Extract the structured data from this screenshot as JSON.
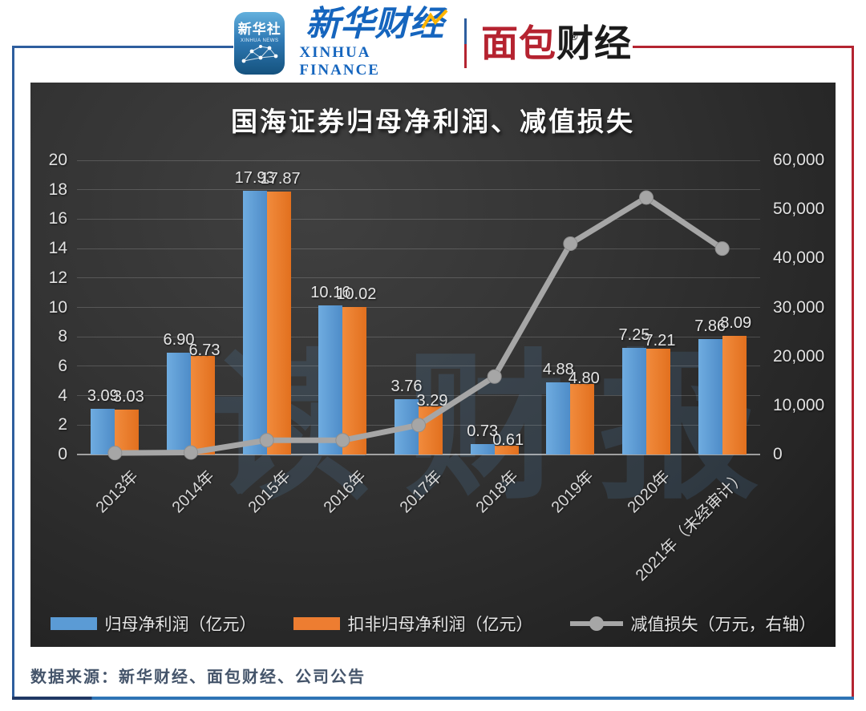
{
  "header": {
    "xinhua_icon": {
      "title": "新华社",
      "subtitle": "XINHUA NEWS"
    },
    "xinhua_finance": {
      "cn": "新华财经",
      "en": "XINHUA FINANCE"
    },
    "bread_finance": {
      "red": "面包",
      "black": "财经",
      "registered": "®"
    }
  },
  "chart_data": {
    "type": "combo-bar-line",
    "title": "国海证券归母净利润、减值损失",
    "watermark": "读财报",
    "categories": [
      "2013年",
      "2014年",
      "2015年",
      "2016年",
      "2017年",
      "2018年",
      "2019年",
      "2020年",
      "2021年（未经审计）"
    ],
    "series": [
      {
        "name": "归母净利润（亿元）",
        "type": "bar",
        "axis": "left",
        "color": "#5B9BD5",
        "values": [
          3.09,
          6.9,
          17.93,
          10.16,
          3.76,
          0.73,
          4.88,
          7.25,
          7.86
        ],
        "labels": [
          "3.09",
          "6.90",
          "17.93",
          "10.16",
          "3.76",
          "0.73",
          "4.88",
          "7.25",
          "7.86"
        ],
        "label_dy": [
          0,
          0,
          0,
          0,
          0,
          0,
          0,
          0,
          0
        ]
      },
      {
        "name": "扣非归母净利润（亿元）",
        "type": "bar",
        "axis": "left",
        "color": "#ED7D31",
        "values": [
          3.03,
          6.73,
          17.87,
          10.02,
          3.29,
          0.61,
          4.8,
          7.21,
          8.09
        ],
        "labels": [
          "3.03",
          "6.73",
          "17.87",
          "10.02",
          "3.29",
          "0.61",
          "4.80",
          "7.21",
          "8.09"
        ],
        "label_dy": [
          0,
          9,
          0,
          0,
          9,
          9,
          9,
          6,
          0
        ]
      },
      {
        "name": "减值损失（万元，右轴）",
        "type": "line",
        "axis": "right",
        "color": "#A6A6A6",
        "values": [
          300,
          400,
          2900,
          2900,
          6000,
          15900,
          43000,
          52400,
          42000
        ]
      }
    ],
    "left_axis": {
      "min": 0,
      "max": 20,
      "ticks": [
        "0",
        "2",
        "4",
        "6",
        "8",
        "10",
        "12",
        "14",
        "16",
        "18",
        "20"
      ]
    },
    "right_axis": {
      "min": 0,
      "max": 60000,
      "ticks": [
        "0",
        "10,000",
        "20,000",
        "30,000",
        "40,000",
        "50,000",
        "60,000"
      ]
    },
    "grid": true,
    "legend_position": "bottom"
  },
  "footer": {
    "source": "数据来源：新华财经、面包财经、公司公告"
  },
  "colors": {
    "bar_blue": "#5B9BD5",
    "bar_orange": "#ED7D31",
    "line_gray": "#A6A6A6",
    "frame_blue": "#2E5E9E",
    "frame_red": "#B42431",
    "bottom_rule_navy": "#203864",
    "bottom_rule_blue": "#2E74B5",
    "source_text": "#44546A"
  }
}
